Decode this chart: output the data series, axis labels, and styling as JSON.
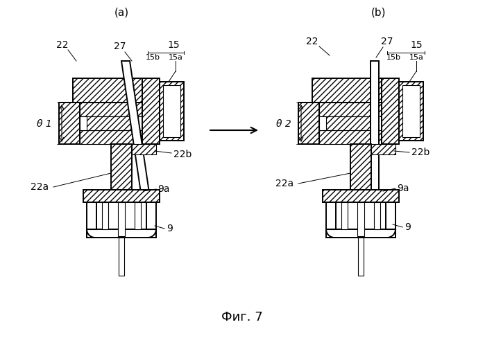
{
  "title": "Фиг. 7",
  "label_a": "(a)",
  "label_b": "(b)",
  "fig_label": "Фиг. 7",
  "bg_color": "#ffffff",
  "line_color": "#000000",
  "labels": {
    "22": "22",
    "27": "27",
    "15": "15",
    "15a": "15a",
    "15b": "15b",
    "22a": "22a",
    "22b": "22b",
    "9a": "9a",
    "9": "9",
    "theta1": "θ 1",
    "theta2": "θ 2"
  }
}
